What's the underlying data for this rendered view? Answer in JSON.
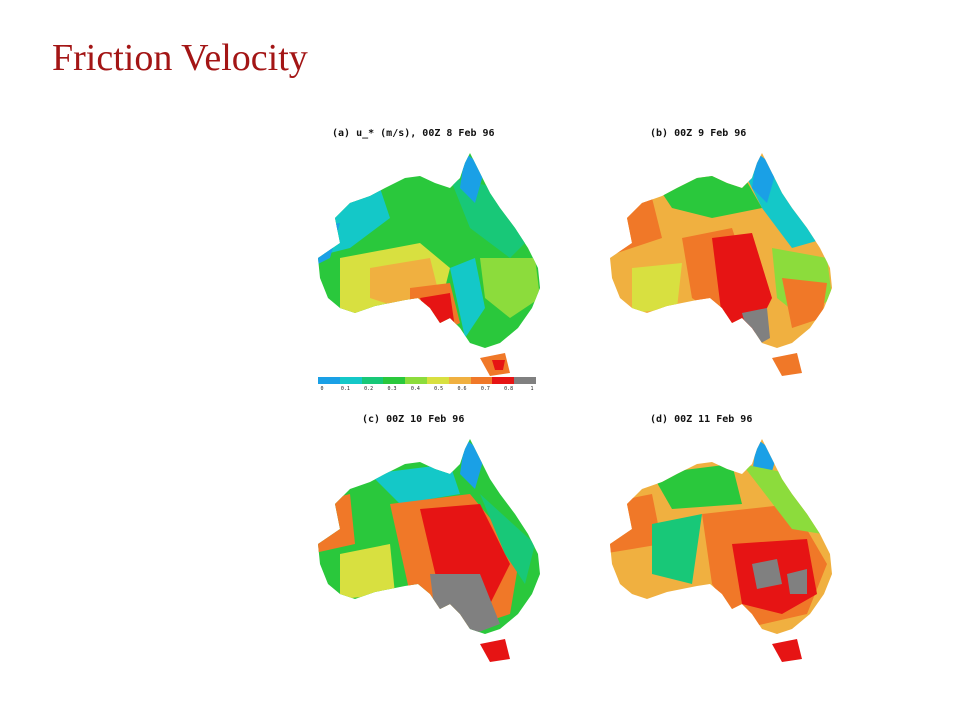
{
  "slide": {
    "title": "Friction Velocity"
  },
  "panels": [
    {
      "id": "a",
      "caption": "(a) u_* (m/s), 00Z 8 Feb 96"
    },
    {
      "id": "b",
      "caption": "(b) 00Z 9 Feb 96"
    },
    {
      "id": "c",
      "caption": "(c) 00Z 10 Feb 96"
    },
    {
      "id": "d",
      "caption": "(d) 00Z 11 Feb 96"
    }
  ],
  "colorbar": {
    "ticks": [
      "0",
      "0.1",
      "0.2",
      "0.3",
      "0.4",
      "0.5",
      "0.6",
      "0.7",
      "0.8",
      "1"
    ],
    "colors": [
      "#1aa0e6",
      "#14c8c8",
      "#18c878",
      "#2ac83c",
      "#8cdc3c",
      "#d8e040",
      "#f0b040",
      "#f07828",
      "#e61414",
      "#808080"
    ]
  },
  "map_colors": {
    "ocean": "#ffffff",
    "very_low": "#1aa0e6",
    "low": "#14c8c8",
    "low_mid": "#18c878",
    "mid": "#2ac83c",
    "mid_high": "#8cdc3c",
    "yellow": "#d8e040",
    "orange_light": "#f0b040",
    "orange": "#f07828",
    "red": "#e61414",
    "gray": "#808080"
  }
}
